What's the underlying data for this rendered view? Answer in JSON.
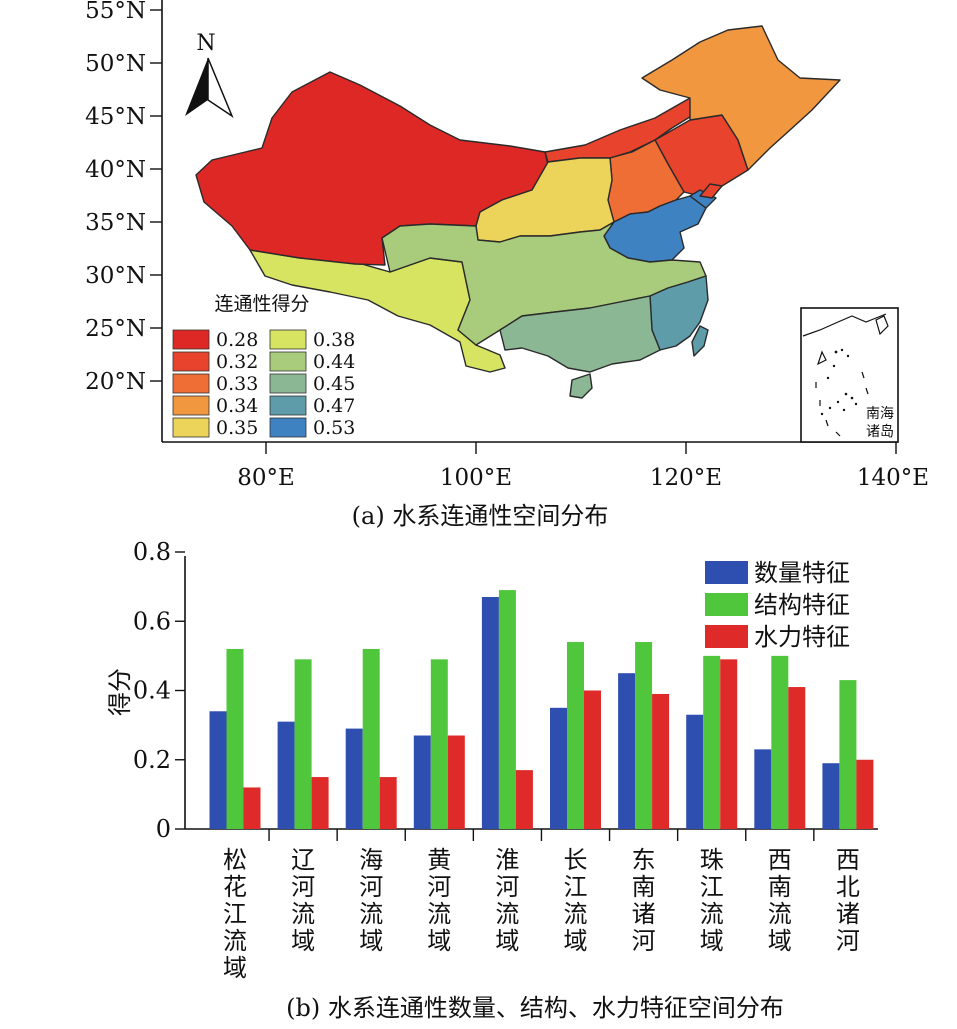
{
  "map_panel": {
    "caption": "(a) 水系连通性空间分布",
    "lat_ticks": [
      "55°N",
      "50°N",
      "45°N",
      "40°N",
      "35°N",
      "30°N",
      "25°N",
      "20°N"
    ],
    "lon_ticks": [
      "80°E",
      "100°E",
      "120°E",
      "140°E"
    ],
    "north_label": "N",
    "inset_label_line1": "南海",
    "inset_label_line2": "诸岛",
    "legend": {
      "title": "连通性得分",
      "items": [
        {
          "value": "0.28",
          "color": "#de2826"
        },
        {
          "value": "0.32",
          "color": "#e8432c"
        },
        {
          "value": "0.33",
          "color": "#ee6e36"
        },
        {
          "value": "0.34",
          "color": "#f0973f"
        },
        {
          "value": "0.35",
          "color": "#ecd35a"
        },
        {
          "value": "0.38",
          "color": "#d6e462"
        },
        {
          "value": "0.44",
          "color": "#a9cb7c"
        },
        {
          "value": "0.45",
          "color": "#8bb794"
        },
        {
          "value": "0.47",
          "color": "#5d9ca8"
        },
        {
          "value": "0.53",
          "color": "#3f82c2"
        }
      ]
    },
    "region_scores": {
      "northwest": "0.28",
      "inner_mongolia_belt": "0.32",
      "liaohe": "0.32",
      "haihe": "0.33",
      "songhua": "0.34",
      "yellow_river": "0.35",
      "southwest": "0.38",
      "yangtze": "0.44",
      "pearl": "0.45",
      "southeast": "0.47",
      "huaihe": "0.53"
    }
  },
  "bar_panel": {
    "caption": "(b) 水系连通性数量、结构、水力特征空间分布",
    "ylabel": "得分",
    "yticks": [
      "0",
      "0.2",
      "0.4",
      "0.6",
      "0.8"
    ]
  },
  "chart_data": {
    "type": "bar",
    "ylabel": "得分",
    "ylim": [
      0,
      0.8
    ],
    "categories": [
      "松花江流域",
      "辽河流域",
      "海河流域",
      "黄河流域",
      "淮河流域",
      "长江流域",
      "东南诸河",
      "珠江流域",
      "西南流域",
      "西北诸河"
    ],
    "series": [
      {
        "name": "数量特征",
        "color": "#2f4fb0",
        "values": [
          0.34,
          0.31,
          0.29,
          0.27,
          0.67,
          0.35,
          0.45,
          0.33,
          0.23,
          0.19
        ]
      },
      {
        "name": "结构特征",
        "color": "#4fc63b",
        "values": [
          0.52,
          0.49,
          0.52,
          0.49,
          0.69,
          0.54,
          0.54,
          0.5,
          0.5,
          0.43
        ]
      },
      {
        "name": "水力特征",
        "color": "#df2a2a",
        "values": [
          0.12,
          0.15,
          0.15,
          0.27,
          0.17,
          0.4,
          0.39,
          0.49,
          0.41,
          0.2
        ]
      }
    ],
    "legend_position": "top-right",
    "grid": false
  }
}
